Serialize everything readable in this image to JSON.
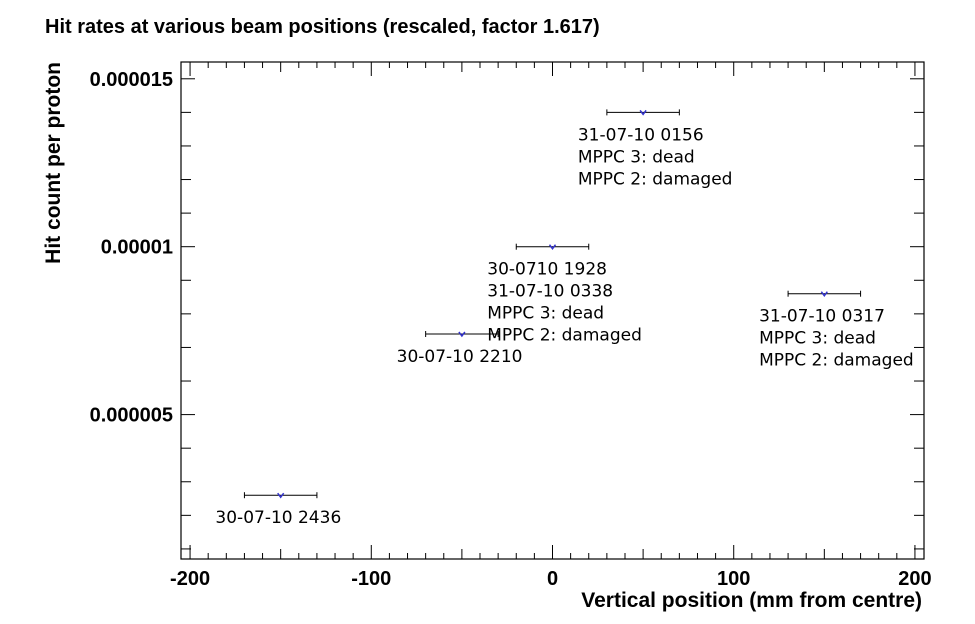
{
  "chart_data": {
    "type": "scatter",
    "title": "Hit rates at various beam positions (rescaled, factor 1.617)",
    "xlabel": "Vertical position (mm from centre)",
    "ylabel": "Hit count per proton",
    "xlim": [
      -205,
      205
    ],
    "ylim": [
      7e-07,
      1.55e-05
    ],
    "x_ticks": [
      {
        "value": -200,
        "label": "-200"
      },
      {
        "value": -100,
        "label": "-100"
      },
      {
        "value": 0,
        "label": "0"
      },
      {
        "value": 100,
        "label": "100"
      },
      {
        "value": 200,
        "label": "200"
      }
    ],
    "y_ticks": [
      {
        "value": 5e-06,
        "label": "0.000005"
      },
      {
        "value": 1e-05,
        "label": "0.00001"
      },
      {
        "value": 1.5e-05,
        "label": "0.000015"
      }
    ],
    "grid": false,
    "marker_color": "#3333cc",
    "errorbar_color": "#000000",
    "points": [
      {
        "x": -150,
        "xerr": 20,
        "y": 2.6e-06,
        "annotation": [
          "30-07-10 2436"
        ]
      },
      {
        "x": -50,
        "xerr": 20,
        "y": 7.4e-06,
        "annotation": [
          "30-07-10 2210"
        ]
      },
      {
        "x": 0,
        "xerr": 20,
        "y": 1e-05,
        "annotation": [
          "30-0710 1928",
          "31-07-10 0338",
          "MPPC 3: dead",
          "MPPC 2: damaged"
        ]
      },
      {
        "x": 50,
        "xerr": 20,
        "y": 1.4e-05,
        "annotation": [
          "31-07-10 0156",
          "MPPC 3: dead",
          "MPPC 2: damaged"
        ]
      },
      {
        "x": 150,
        "xerr": 20,
        "y": 8.6e-06,
        "annotation": [
          "31-07-10 0317",
          "MPPC 3: dead",
          "MPPC 2: damaged"
        ]
      }
    ]
  }
}
